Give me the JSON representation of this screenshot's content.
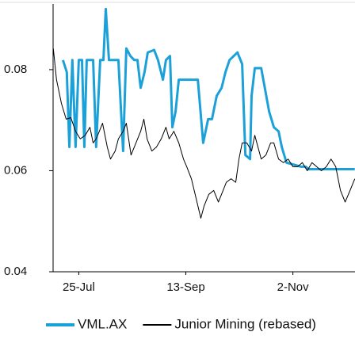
{
  "chart_data": {
    "type": "line",
    "xlim": [
      194,
      335
    ],
    "xticks": [
      {
        "value": 206,
        "label": "25-Jul"
      },
      {
        "value": 256,
        "label": "13-Sep"
      },
      {
        "value": 306,
        "label": "2-Nov"
      }
    ],
    "ylim": [
      0.04,
      0.093
    ],
    "yticks": [
      0.04,
      0.06,
      0.08
    ],
    "series": [
      {
        "name": "VML.AX",
        "color": "#1ba1d8",
        "width": 3,
        "x": [
          198.6,
          200.4,
          201.6,
          203,
          204.5,
          206,
          207.5,
          208.6,
          209.7,
          212.7,
          214.1,
          216,
          217.5,
          218.6,
          220.1,
          222.7,
          224.5,
          226.7,
          228.2,
          230.1,
          231.9,
          233.4,
          234.9,
          236.7,
          238.2,
          241.2,
          243,
          245.3,
          246.7,
          248.6,
          249.7,
          251.2,
          252.7,
          254.9,
          257.9,
          261.6,
          264.1,
          266.4,
          268.2,
          270.4,
          272.7,
          274.5,
          276.4,
          280.1,
          282.3,
          283.8,
          286,
          286.7,
          288.2,
          291.2,
          294.9,
          297.1,
          299.3,
          300.8,
          303,
          309.7,
          311.9,
          313.4,
          334.9
        ],
        "values": [
          0.0819,
          0.0795,
          0.0647,
          0.0819,
          0.0647,
          0.0819,
          0.0819,
          0.0647,
          0.0819,
          0.0819,
          0.0647,
          0.0819,
          0.0819,
          0.092,
          0.0819,
          0.0819,
          0.0819,
          0.0639,
          0.0842,
          0.0827,
          0.0819,
          0.0819,
          0.0764,
          0.0795,
          0.0834,
          0.0839,
          0.0819,
          0.078,
          0.0819,
          0.0827,
          0.0686,
          0.0717,
          0.078,
          0.078,
          0.078,
          0.078,
          0.0655,
          0.0702,
          0.0702,
          0.0748,
          0.0764,
          0.0795,
          0.0819,
          0.0834,
          0.0811,
          0.0631,
          0.0623,
          0.0748,
          0.0803,
          0.0803,
          0.0717,
          0.0686,
          0.0678,
          0.0647,
          0.0616,
          0.0608,
          0.0608,
          0.0603,
          0.0603
        ]
      },
      {
        "name": "Junior Mining (rebased)",
        "color": "#000000",
        "width": 1,
        "x": [
          194.1,
          195.6,
          197.9,
          200.1,
          202.3,
          204.5,
          206.7,
          209,
          211.2,
          212.7,
          214.1,
          215.6,
          217.1,
          219.3,
          220.8,
          223,
          224.5,
          226.7,
          228.2,
          230.4,
          232.7,
          234.9,
          236.4,
          237.9,
          240.1,
          242.3,
          244.5,
          246.7,
          248.2,
          250.4,
          252.7,
          254.9,
          256.4,
          258.6,
          260.8,
          263,
          264.5,
          266.7,
          269,
          271.2,
          273.4,
          274.9,
          277.1,
          279.3,
          280.8,
          282.3,
          284.5,
          286.7,
          288.2,
          291.2,
          293.4,
          295.6,
          297.1,
          299.3,
          301.6,
          303.8,
          306,
          308.2,
          310.4,
          312.7,
          314.9,
          317.1,
          319.3,
          321.6,
          323.8,
          326,
          328.2,
          330.4,
          332.7,
          334.9
        ],
        "values": [
          0.0842,
          0.078,
          0.0733,
          0.0702,
          0.0705,
          0.0678,
          0.0663,
          0.067,
          0.0686,
          0.0655,
          0.0663,
          0.0678,
          0.0694,
          0.0647,
          0.0623,
          0.0639,
          0.0663,
          0.0678,
          0.0694,
          0.0631,
          0.0655,
          0.0678,
          0.0702,
          0.0663,
          0.0639,
          0.0647,
          0.0663,
          0.0686,
          0.0663,
          0.0678,
          0.0655,
          0.0623,
          0.0608,
          0.0584,
          0.0545,
          0.0506,
          0.053,
          0.0553,
          0.0561,
          0.0538,
          0.0561,
          0.0577,
          0.0584,
          0.0577,
          0.0623,
          0.0655,
          0.0655,
          0.0639,
          0.067,
          0.0623,
          0.0631,
          0.0655,
          0.0655,
          0.0623,
          0.0616,
          0.0623,
          0.0608,
          0.0608,
          0.0616,
          0.06,
          0.0616,
          0.0608,
          0.06,
          0.0608,
          0.0623,
          0.0608,
          0.0561,
          0.0538,
          0.0561,
          0.0584
        ]
      }
    ]
  }
}
